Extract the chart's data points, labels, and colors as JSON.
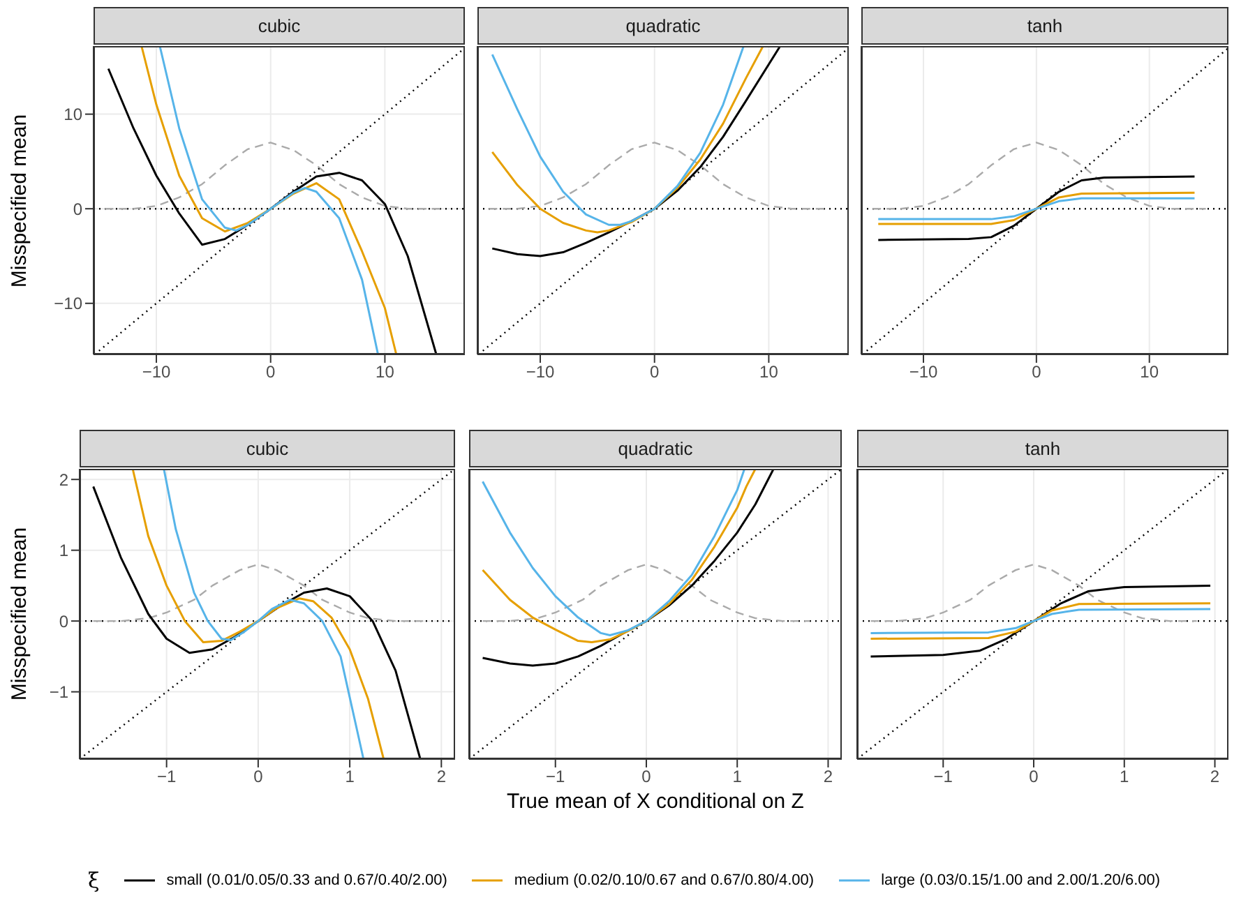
{
  "chart_data": [
    {
      "type": "line",
      "title": "cubic",
      "ylabel": "Misspecified mean",
      "xlim": [
        -15.5,
        17
      ],
      "ylim": [
        -15.4,
        17.2
      ],
      "xticks": [
        -10,
        0,
        10
      ],
      "yticks": [
        -10,
        0,
        10
      ],
      "grid": true,
      "legend": false,
      "ref_lines": [
        {
          "axis": "y",
          "value": 0,
          "color": "#000000",
          "line_style": "dotted"
        }
      ],
      "series": [
        {
          "color": "#aaaaaa",
          "line_style": "dashed",
          "x": [
            -14.5,
            -12,
            -10,
            -8,
            -6,
            -4,
            -2,
            0,
            2,
            4,
            6,
            8,
            10,
            12,
            15
          ],
          "values": [
            0,
            0,
            0.3,
            1.2,
            2.6,
            4.6,
            6.3,
            7,
            6.2,
            4.6,
            2.6,
            1.2,
            0.3,
            0,
            0
          ]
        },
        {
          "color": "#000000",
          "line_style": "dotted",
          "x": [
            -15.4,
            17
          ],
          "values": [
            -15.4,
            17
          ]
        },
        {
          "color": "#000000",
          "line_style": "solid",
          "x": [
            -14.2,
            -12,
            -10,
            -8,
            -6,
            -4,
            -2,
            0,
            2,
            4,
            6,
            8,
            10,
            12,
            14.5
          ],
          "values": [
            14.8,
            8.5,
            3.5,
            -0.5,
            -3.8,
            -3.2,
            -1.7,
            0,
            1.8,
            3.4,
            3.8,
            3,
            0.5,
            -5,
            -15.4
          ]
        },
        {
          "color": "#e69f00",
          "line_style": "solid",
          "x": [
            -11.3,
            -10,
            -8,
            -6,
            -4,
            -2,
            0,
            2,
            4,
            6,
            8,
            10,
            11
          ],
          "values": [
            17.2,
            11,
            3.5,
            -1,
            -2.4,
            -1.5,
            0,
            1.6,
            2.7,
            1,
            -4.5,
            -10.5,
            -15.4
          ]
        },
        {
          "color": "#56b4e9",
          "line_style": "solid",
          "x": [
            -9.7,
            -8,
            -6,
            -4,
            -3,
            -2,
            0,
            2,
            3,
            4,
            6,
            8,
            9.4
          ],
          "values": [
            17.2,
            8.5,
            1,
            -2,
            -2.3,
            -1.7,
            0,
            1.7,
            2.2,
            1.8,
            -1,
            -7.5,
            -15.4
          ]
        }
      ]
    },
    {
      "type": "line",
      "title": "quadratic",
      "xlim": [
        -15.5,
        17
      ],
      "ylim": [
        -15.4,
        17.2
      ],
      "xticks": [
        -10,
        0,
        10
      ],
      "yticks": [
        -10,
        0,
        10
      ],
      "grid": true,
      "legend": false,
      "tick_labels": "x",
      "ref_lines": [
        {
          "axis": "y",
          "value": 0,
          "color": "#000000",
          "line_style": "dotted"
        }
      ],
      "series": [
        {
          "color": "#aaaaaa",
          "line_style": "dashed",
          "x": [
            -14.5,
            -12,
            -10,
            -8,
            -6,
            -4,
            -2,
            0,
            2,
            4,
            6,
            8,
            10,
            12,
            15
          ],
          "values": [
            0,
            0,
            0.3,
            1.2,
            2.6,
            4.6,
            6.3,
            7,
            6.2,
            4.6,
            2.6,
            1.2,
            0.3,
            0,
            0
          ]
        },
        {
          "color": "#000000",
          "line_style": "dotted",
          "x": [
            -15.4,
            17
          ],
          "values": [
            -15.4,
            17
          ]
        },
        {
          "color": "#000000",
          "line_style": "solid",
          "x": [
            -14.2,
            -12,
            -10,
            -8,
            -6,
            -4,
            -2,
            0,
            2,
            4,
            6,
            8,
            11
          ],
          "values": [
            -4.2,
            -4.8,
            -5,
            -4.6,
            -3.6,
            -2.5,
            -1.3,
            0,
            1.9,
            4.4,
            7.6,
            11.4,
            17.2
          ]
        },
        {
          "color": "#e69f00",
          "line_style": "solid",
          "x": [
            -14.2,
            -12,
            -10,
            -8,
            -6,
            -5,
            -4,
            -2,
            0,
            2,
            4,
            6,
            8,
            9.5
          ],
          "values": [
            6,
            2.5,
            0,
            -1.5,
            -2.3,
            -2.5,
            -2.3,
            -1.4,
            0,
            2.2,
            5.2,
            9,
            13.8,
            17.2
          ]
        },
        {
          "color": "#56b4e9",
          "line_style": "solid",
          "x": [
            -14.2,
            -12,
            -10,
            -8,
            -6,
            -4,
            -3,
            -2,
            0,
            2,
            4,
            6,
            7.8
          ],
          "values": [
            16.3,
            10.5,
            5.5,
            1.8,
            -0.6,
            -1.7,
            -1.7,
            -1.3,
            0,
            2.4,
            5.9,
            11,
            17.2
          ]
        }
      ]
    },
    {
      "type": "line",
      "title": "tanh",
      "xlim": [
        -15.5,
        17
      ],
      "ylim": [
        -15.4,
        17.2
      ],
      "xticks": [
        -10,
        0,
        10
      ],
      "yticks": [
        -10,
        0,
        10
      ],
      "grid": true,
      "legend": false,
      "tick_labels": "x",
      "ref_lines": [
        {
          "axis": "y",
          "value": 0,
          "color": "#000000",
          "line_style": "dotted"
        }
      ],
      "series": [
        {
          "color": "#aaaaaa",
          "line_style": "dashed",
          "x": [
            -14.5,
            -12,
            -10,
            -8,
            -6,
            -4,
            -2,
            0,
            2,
            4,
            6,
            8,
            10,
            12,
            15
          ],
          "values": [
            0,
            0,
            0.3,
            1.2,
            2.6,
            4.6,
            6.3,
            7,
            6.2,
            4.6,
            2.6,
            1.2,
            0.3,
            0,
            0
          ]
        },
        {
          "color": "#000000",
          "line_style": "dotted",
          "x": [
            -15.4,
            17
          ],
          "values": [
            -15.4,
            17
          ]
        },
        {
          "color": "#000000",
          "line_style": "solid",
          "x": [
            -14,
            -6,
            -4,
            -2,
            0,
            2,
            4,
            6,
            14
          ],
          "values": [
            -3.3,
            -3.2,
            -3,
            -1.8,
            0,
            1.8,
            3,
            3.3,
            3.4
          ]
        },
        {
          "color": "#e69f00",
          "line_style": "solid",
          "x": [
            -14,
            -4,
            -2,
            0,
            2,
            4,
            14
          ],
          "values": [
            -1.6,
            -1.6,
            -1.2,
            0,
            1.2,
            1.6,
            1.7
          ]
        },
        {
          "color": "#56b4e9",
          "line_style": "solid",
          "x": [
            -14,
            -4,
            -2,
            0,
            2,
            4,
            14
          ],
          "values": [
            -1.1,
            -1.1,
            -0.8,
            0,
            0.8,
            1.1,
            1.1
          ]
        }
      ]
    },
    {
      "type": "line",
      "title": "cubic",
      "ylabel": "Misspecified mean",
      "xlim": [
        -1.95,
        2.15
      ],
      "ylim": [
        -1.95,
        2.15
      ],
      "xticks": [
        -1,
        0,
        1,
        2
      ],
      "yticks": [
        -1,
        0,
        1,
        2
      ],
      "grid": true,
      "legend": false,
      "ref_lines": [
        {
          "axis": "y",
          "value": 0,
          "color": "#000000",
          "line_style": "dotted"
        }
      ],
      "series": [
        {
          "color": "#aaaaaa",
          "line_style": "dashed",
          "x": [
            -1.8,
            -1.5,
            -1.2,
            -1,
            -0.7,
            -0.5,
            -0.2,
            0,
            0.2,
            0.5,
            0.7,
            1,
            1.2,
            1.5,
            1.8
          ],
          "values": [
            0,
            0,
            0.04,
            0.12,
            0.3,
            0.5,
            0.72,
            0.8,
            0.72,
            0.5,
            0.3,
            0.12,
            0.04,
            0,
            0
          ]
        },
        {
          "color": "#000000",
          "line_style": "dotted",
          "x": [
            -1.95,
            2.15
          ],
          "values": [
            -1.95,
            2.15
          ]
        },
        {
          "color": "#000000",
          "line_style": "solid",
          "x": [
            -1.8,
            -1.5,
            -1.2,
            -1,
            -0.75,
            -0.5,
            -0.25,
            0,
            0.25,
            0.5,
            0.75,
            1,
            1.25,
            1.5,
            1.77
          ],
          "values": [
            1.9,
            0.9,
            0.1,
            -0.25,
            -0.45,
            -0.4,
            -0.22,
            0,
            0.22,
            0.4,
            0.46,
            0.35,
            0,
            -0.7,
            -1.95
          ]
        },
        {
          "color": "#e69f00",
          "line_style": "solid",
          "x": [
            -1.37,
            -1.2,
            -1,
            -0.8,
            -0.6,
            -0.4,
            -0.2,
            0,
            0.2,
            0.45,
            0.6,
            0.8,
            1,
            1.2,
            1.37
          ],
          "values": [
            2.15,
            1.2,
            0.5,
            0,
            -0.3,
            -0.28,
            -0.15,
            0,
            0.18,
            0.32,
            0.28,
            0.05,
            -0.4,
            -1.1,
            -1.95
          ]
        },
        {
          "color": "#56b4e9",
          "line_style": "solid",
          "x": [
            -1.03,
            -0.9,
            -0.7,
            -0.55,
            -0.4,
            -0.3,
            -0.15,
            0,
            0.15,
            0.35,
            0.5,
            0.7,
            0.9,
            1.15
          ],
          "values": [
            2.15,
            1.3,
            0.4,
            0,
            -0.25,
            -0.27,
            -0.15,
            0,
            0.17,
            0.3,
            0.25,
            0,
            -0.5,
            -1.95
          ]
        }
      ]
    },
    {
      "type": "line",
      "title": "quadratic",
      "xlabel": "True mean of X conditional on Z",
      "xlim": [
        -1.95,
        2.15
      ],
      "ylim": [
        -1.95,
        2.15
      ],
      "xticks": [
        -1,
        0,
        1,
        2
      ],
      "yticks": [
        -1,
        0,
        1,
        2
      ],
      "grid": true,
      "legend": false,
      "tick_labels": "x",
      "ref_lines": [
        {
          "axis": "y",
          "value": 0,
          "color": "#000000",
          "line_style": "dotted"
        }
      ],
      "series": [
        {
          "color": "#aaaaaa",
          "line_style": "dashed",
          "x": [
            -1.8,
            -1.5,
            -1.2,
            -1,
            -0.7,
            -0.5,
            -0.2,
            0,
            0.2,
            0.5,
            0.7,
            1,
            1.2,
            1.5,
            1.8
          ],
          "values": [
            0,
            0,
            0.04,
            0.12,
            0.3,
            0.5,
            0.72,
            0.8,
            0.72,
            0.5,
            0.3,
            0.12,
            0.04,
            0,
            0
          ]
        },
        {
          "color": "#000000",
          "line_style": "dotted",
          "x": [
            -1.95,
            2.15
          ],
          "values": [
            -1.95,
            2.15
          ]
        },
        {
          "color": "#000000",
          "line_style": "solid",
          "x": [
            -1.8,
            -1.5,
            -1.25,
            -1,
            -0.75,
            -0.5,
            -0.25,
            0,
            0.25,
            0.5,
            0.75,
            1,
            1.2,
            1.4
          ],
          "values": [
            -0.52,
            -0.6,
            -0.63,
            -0.6,
            -0.5,
            -0.35,
            -0.17,
            0,
            0.22,
            0.5,
            0.85,
            1.25,
            1.65,
            2.15
          ]
        },
        {
          "color": "#e69f00",
          "line_style": "solid",
          "x": [
            -1.8,
            -1.5,
            -1.25,
            -1,
            -0.75,
            -0.6,
            -0.4,
            -0.2,
            0,
            0.25,
            0.5,
            0.75,
            1,
            1.1,
            1.2
          ],
          "values": [
            0.72,
            0.3,
            0.05,
            -0.12,
            -0.28,
            -0.3,
            -0.26,
            -0.14,
            0,
            0.24,
            0.58,
            1.05,
            1.6,
            1.9,
            2.15
          ]
        },
        {
          "color": "#56b4e9",
          "line_style": "solid",
          "x": [
            -1.8,
            -1.5,
            -1.25,
            -1,
            -0.75,
            -0.5,
            -0.4,
            -0.2,
            0,
            0.25,
            0.5,
            0.75,
            1,
            1.08
          ],
          "values": [
            1.97,
            1.25,
            0.75,
            0.35,
            0.05,
            -0.17,
            -0.2,
            -0.13,
            0,
            0.28,
            0.65,
            1.2,
            1.85,
            2.15
          ]
        }
      ]
    },
    {
      "type": "line",
      "title": "tanh",
      "xlim": [
        -1.95,
        2.15
      ],
      "ylim": [
        -1.95,
        2.15
      ],
      "xticks": [
        -1,
        0,
        1,
        2
      ],
      "yticks": [
        -1,
        0,
        1,
        2
      ],
      "grid": true,
      "legend": "bottom",
      "legend_title": "ξ",
      "tick_labels": "x",
      "ref_lines": [
        {
          "axis": "y",
          "value": 0,
          "color": "#000000",
          "line_style": "dotted"
        }
      ],
      "series": [
        {
          "color": "#aaaaaa",
          "line_style": "dashed",
          "x": [
            -1.8,
            -1.5,
            -1.2,
            -1,
            -0.7,
            -0.5,
            -0.2,
            0,
            0.2,
            0.5,
            0.7,
            1,
            1.2,
            1.5,
            1.8
          ],
          "values": [
            0,
            0,
            0.04,
            0.12,
            0.3,
            0.5,
            0.72,
            0.8,
            0.72,
            0.5,
            0.3,
            0.12,
            0.04,
            0,
            0
          ]
        },
        {
          "color": "#000000",
          "line_style": "dotted",
          "x": [
            -1.95,
            2.15
          ],
          "values": [
            -1.95,
            2.15
          ]
        },
        {
          "name": "small (0.01/0.05/0.33 and 0.67/0.40/2.00)",
          "color": "#000000",
          "line_style": "solid",
          "x": [
            -1.8,
            -1,
            -0.6,
            -0.3,
            0,
            0.3,
            0.6,
            1,
            1.95
          ],
          "values": [
            -0.5,
            -0.48,
            -0.42,
            -0.25,
            0,
            0.25,
            0.42,
            0.48,
            0.5
          ]
        },
        {
          "name": "medium (0.02/0.10/0.67 and 0.67/0.80/4.00)",
          "color": "#e69f00",
          "line_style": "solid",
          "x": [
            -1.8,
            -0.5,
            -0.2,
            0,
            0.2,
            0.5,
            1.95
          ],
          "values": [
            -0.25,
            -0.24,
            -0.15,
            0,
            0.15,
            0.24,
            0.25
          ]
        },
        {
          "name": "large (0.03/0.15/1.00 and 2.00/1.20/6.00)",
          "color": "#56b4e9",
          "line_style": "solid",
          "x": [
            -1.8,
            -0.5,
            -0.2,
            0,
            0.2,
            0.5,
            1.95
          ],
          "values": [
            -0.17,
            -0.16,
            -0.1,
            0,
            0.1,
            0.16,
            0.17
          ]
        }
      ]
    }
  ]
}
